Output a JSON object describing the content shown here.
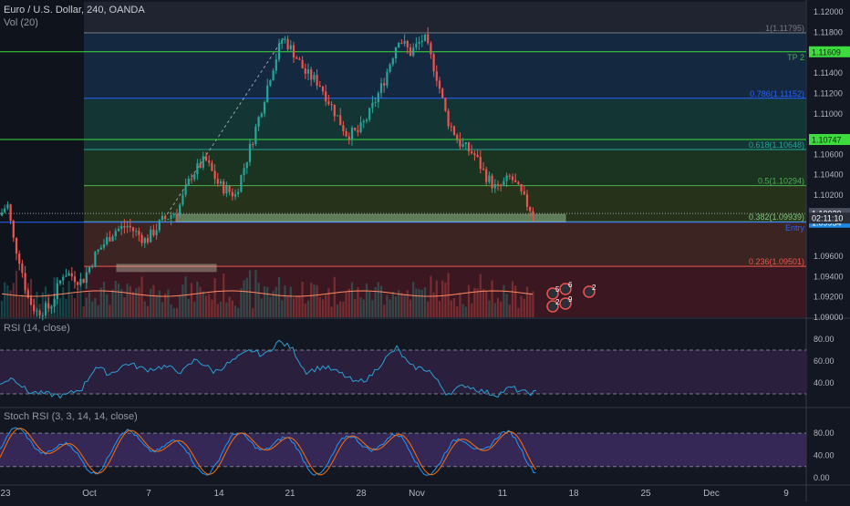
{
  "header": {
    "symbol_line": "Euro / U.S. Dollar, 240, OANDA",
    "volume_label": "Vol (20)",
    "rsi_label": "RSI (14, close)",
    "stoch_label": "Stoch RSI (3, 3, 14, 14, close)"
  },
  "colors": {
    "background": "#131722",
    "up": "#26a69a",
    "down": "#ef5350",
    "rsi_line": "#2a9fd6",
    "rsi_band": "#2a1f3d",
    "stoch_k": "#2196f3",
    "stoch_d": "#ff6d00",
    "green_line": "#3ddc3d",
    "blue_line": "#2962ff",
    "price_badge": "#1e88e5"
  },
  "chart_data": [
    {
      "type": "candlestick",
      "pane": "price",
      "pair": "EUR/USD",
      "timeframe": "240",
      "x_tick_labels": [
        "23",
        "Oct",
        "7",
        "14",
        "21",
        "28",
        "Nov",
        "11",
        "18",
        "25",
        "Dec",
        "9"
      ],
      "y_tick_labels": [
        "1.12000",
        "1.11800",
        "1.11400",
        "1.11200",
        "1.11000",
        "1.10600",
        "1.10400",
        "1.10200",
        "1.09600",
        "1.09400",
        "1.09200",
        "1.09000"
      ],
      "ylim": [
        1.09,
        1.121
      ],
      "fib_levels": [
        {
          "label": "1(1.11795)",
          "value": 1.11795
        },
        {
          "label": "0.786(1.11152)",
          "value": 1.11152
        },
        {
          "label": "0.618(1.10648)",
          "value": 1.10648
        },
        {
          "label": "0.5(1.10294)",
          "value": 1.10294
        },
        {
          "label": "0.382(1.09939)",
          "value": 1.09939
        },
        {
          "label": "0.236(1.09501)",
          "value": 1.09501
        }
      ],
      "horizontal_lines": [
        {
          "label": "TP 2",
          "value": 1.11609,
          "badge": "1.11609"
        },
        {
          "label": "",
          "value": 1.10747,
          "badge": "1.10747"
        },
        {
          "label": "Entry",
          "value": 1.09934,
          "badge": "1.09934"
        }
      ],
      "price_axis_badges": [
        {
          "text": "1.10020",
          "value": 1.1002
        },
        {
          "text": "02:11:10",
          "value": 1.09975
        }
      ],
      "events": [
        "5",
        "6",
        "2",
        "9",
        "2"
      ],
      "volume_label": "Vol (20)"
    },
    {
      "type": "line",
      "pane": "rsi",
      "name": "RSI (14, close)",
      "ylim": [
        20,
        85
      ],
      "y_tick_labels": [
        "80.00",
        "60.00",
        "40.00"
      ],
      "bands": [
        70,
        30
      ]
    },
    {
      "type": "line",
      "pane": "stoch_rsi",
      "name": "Stoch RSI (3, 3, 14, 14, close)",
      "ylim": [
        -10,
        100
      ],
      "y_tick_labels": [
        "80.00",
        "40.00",
        "0.00"
      ],
      "bands": [
        80,
        20
      ]
    }
  ]
}
